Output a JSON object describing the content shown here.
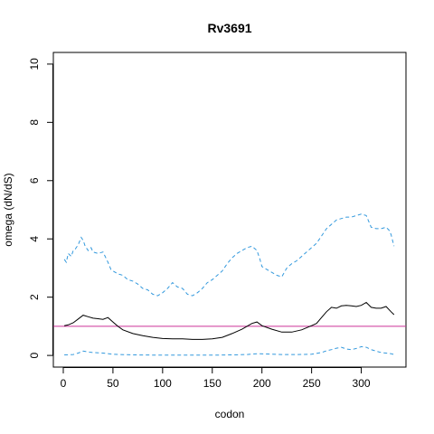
{
  "chart_data": {
    "type": "line",
    "title": "Rv3691",
    "xlabel": "codon",
    "ylabel": "omega (dN/dS)",
    "xlim": [
      -10,
      345
    ],
    "ylim": [
      -0.4,
      10.4
    ],
    "xticks": [
      0,
      50,
      100,
      150,
      200,
      250,
      300
    ],
    "yticks": [
      0,
      2,
      4,
      6,
      8,
      10
    ],
    "grid": false,
    "reference_line": {
      "y": 1,
      "color": "#cc3399"
    },
    "series": [
      {
        "style": "solid",
        "color": "#000000",
        "x": [
          1,
          5,
          10,
          15,
          20,
          25,
          30,
          35,
          40,
          45,
          50,
          55,
          60,
          70,
          80,
          90,
          100,
          110,
          120,
          130,
          140,
          150,
          160,
          170,
          180,
          190,
          195,
          200,
          210,
          220,
          230,
          240,
          250,
          255,
          260,
          265,
          270,
          275,
          280,
          285,
          290,
          295,
          300,
          305,
          310,
          315,
          320,
          325,
          330,
          333
        ],
        "y": [
          1.02,
          1.05,
          1.12,
          1.25,
          1.38,
          1.33,
          1.28,
          1.26,
          1.24,
          1.3,
          1.15,
          1.0,
          0.88,
          0.75,
          0.68,
          0.62,
          0.58,
          0.57,
          0.57,
          0.55,
          0.55,
          0.57,
          0.62,
          0.75,
          0.9,
          1.1,
          1.15,
          1.02,
          0.9,
          0.8,
          0.8,
          0.88,
          1.02,
          1.1,
          1.3,
          1.5,
          1.65,
          1.62,
          1.7,
          1.72,
          1.7,
          1.68,
          1.72,
          1.82,
          1.65,
          1.62,
          1.62,
          1.68,
          1.5,
          1.4
        ]
      },
      {
        "style": "dashed",
        "color": "#3399dd",
        "x": [
          1,
          3,
          5,
          8,
          10,
          12,
          15,
          18,
          20,
          22,
          25,
          28,
          30,
          35,
          40,
          45,
          48,
          50,
          55,
          60,
          65,
          70,
          75,
          80,
          85,
          90,
          95,
          100,
          105,
          110,
          115,
          120,
          125,
          130,
          135,
          140,
          145,
          150,
          155,
          160,
          165,
          170,
          175,
          180,
          185,
          190,
          195,
          198,
          200,
          205,
          210,
          215,
          220,
          225,
          230,
          235,
          240,
          245,
          250,
          255,
          260,
          265,
          270,
          275,
          280,
          285,
          290,
          295,
          300,
          305,
          310,
          315,
          320,
          325,
          328,
          330,
          333
        ],
        "y": [
          3.3,
          3.2,
          3.5,
          3.4,
          3.6,
          3.65,
          3.8,
          4.05,
          3.95,
          3.75,
          3.6,
          3.7,
          3.55,
          3.5,
          3.55,
          3.2,
          2.95,
          2.9,
          2.8,
          2.75,
          2.6,
          2.55,
          2.45,
          2.3,
          2.25,
          2.1,
          2.05,
          2.15,
          2.3,
          2.5,
          2.35,
          2.3,
          2.1,
          2.05,
          2.15,
          2.3,
          2.5,
          2.6,
          2.75,
          2.9,
          3.15,
          3.35,
          3.5,
          3.6,
          3.7,
          3.75,
          3.6,
          3.3,
          3.05,
          2.95,
          2.85,
          2.75,
          2.7,
          3.0,
          3.15,
          3.25,
          3.4,
          3.55,
          3.7,
          3.85,
          4.1,
          4.35,
          4.5,
          4.65,
          4.7,
          4.75,
          4.75,
          4.8,
          4.85,
          4.8,
          4.4,
          4.35,
          4.35,
          4.4,
          4.3,
          4.15,
          3.75
        ]
      },
      {
        "style": "dashed",
        "color": "#3399dd",
        "x": [
          1,
          10,
          15,
          20,
          25,
          30,
          40,
          50,
          70,
          100,
          130,
          150,
          170,
          185,
          195,
          205,
          220,
          235,
          250,
          260,
          265,
          270,
          275,
          280,
          285,
          290,
          295,
          300,
          305,
          310,
          315,
          320,
          325,
          330,
          333
        ],
        "y": [
          0.02,
          0.03,
          0.08,
          0.15,
          0.12,
          0.1,
          0.08,
          0.04,
          0.02,
          0.01,
          0.01,
          0.01,
          0.02,
          0.03,
          0.06,
          0.05,
          0.03,
          0.03,
          0.04,
          0.1,
          0.16,
          0.2,
          0.25,
          0.28,
          0.22,
          0.2,
          0.24,
          0.3,
          0.28,
          0.2,
          0.15,
          0.1,
          0.08,
          0.06,
          0.03
        ]
      }
    ]
  }
}
